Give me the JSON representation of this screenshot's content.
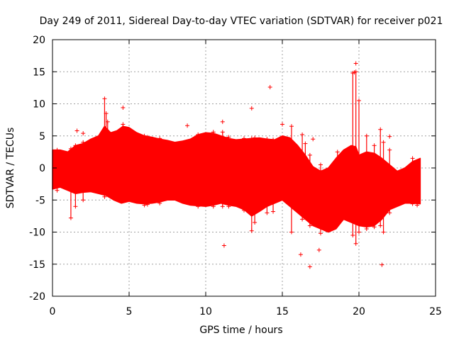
{
  "chart_data": {
    "type": "scatter",
    "title": "Day 249 of 2011, Sidereal Day-to-day VTEC variation (SDTVAR) for receiver p021",
    "xlabel": "GPS time / hours",
    "ylabel": "SDTVAR / TECUs",
    "xlim": [
      0,
      25
    ],
    "ylim": [
      -20,
      20
    ],
    "xticks": [
      0,
      5,
      10,
      15,
      20,
      25
    ],
    "xtick_labels": [
      "0",
      "5",
      "10",
      "15",
      "20",
      "25"
    ],
    "yticks": [
      -20,
      -15,
      -10,
      -5,
      0,
      5,
      10,
      15,
      20
    ],
    "ytick_labels": [
      "-20",
      "-15",
      "-10",
      "-5",
      "0",
      "5",
      "10",
      "15",
      "20"
    ],
    "grid": true,
    "marker": "+",
    "color": "#ff0000",
    "band_upper": [
      [
        0,
        2.8
      ],
      [
        0.5,
        2.8
      ],
      [
        1,
        2.5
      ],
      [
        1.5,
        3.5
      ],
      [
        2,
        3.8
      ],
      [
        2.5,
        4.5
      ],
      [
        3,
        5.0
      ],
      [
        3.4,
        6.5
      ],
      [
        3.8,
        5.5
      ],
      [
        4.2,
        5.8
      ],
      [
        4.6,
        6.5
      ],
      [
        5,
        6.3
      ],
      [
        5.5,
        5.5
      ],
      [
        6,
        5.0
      ],
      [
        6.5,
        4.8
      ],
      [
        7,
        4.5
      ],
      [
        7.5,
        4.3
      ],
      [
        8,
        4.0
      ],
      [
        8.5,
        4.2
      ],
      [
        9,
        4.5
      ],
      [
        9.5,
        5.2
      ],
      [
        10,
        5.5
      ],
      [
        10.5,
        5.4
      ],
      [
        11,
        5.0
      ],
      [
        11.5,
        4.6
      ],
      [
        12,
        4.4
      ],
      [
        12.5,
        4.5
      ],
      [
        13,
        4.6
      ],
      [
        13.5,
        4.7
      ],
      [
        14,
        4.5
      ],
      [
        14.5,
        4.4
      ],
      [
        15,
        5.0
      ],
      [
        15.5,
        4.7
      ],
      [
        16,
        3.5
      ],
      [
        16.5,
        2.0
      ],
      [
        17,
        0.2
      ],
      [
        17.5,
        -0.5
      ],
      [
        18,
        0.0
      ],
      [
        18.5,
        1.5
      ],
      [
        19,
        2.8
      ],
      [
        19.5,
        3.5
      ],
      [
        19.8,
        3.3
      ],
      [
        20,
        2.0
      ],
      [
        20.5,
        2.5
      ],
      [
        21,
        2.3
      ],
      [
        21.5,
        1.5
      ],
      [
        22,
        0.5
      ],
      [
        22.5,
        -0.5
      ],
      [
        23,
        0.0
      ],
      [
        23.5,
        1.0
      ],
      [
        24,
        1.5
      ]
    ],
    "band_lower": [
      [
        0,
        -3.3
      ],
      [
        0.5,
        -3.0
      ],
      [
        1,
        -3.5
      ],
      [
        1.5,
        -4.0
      ],
      [
        2,
        -3.8
      ],
      [
        2.5,
        -3.7
      ],
      [
        3,
        -4.0
      ],
      [
        3.5,
        -4.3
      ],
      [
        4,
        -5.0
      ],
      [
        4.5,
        -5.5
      ],
      [
        5,
        -5.2
      ],
      [
        5.5,
        -5.5
      ],
      [
        6,
        -5.6
      ],
      [
        6.5,
        -5.5
      ],
      [
        7,
        -5.3
      ],
      [
        7.5,
        -5.0
      ],
      [
        8,
        -5.0
      ],
      [
        8.5,
        -5.5
      ],
      [
        9,
        -5.8
      ],
      [
        9.5,
        -5.9
      ],
      [
        10,
        -6.0
      ],
      [
        10.5,
        -5.8
      ],
      [
        11,
        -5.5
      ],
      [
        11.5,
        -5.8
      ],
      [
        12,
        -6.0
      ],
      [
        12.5,
        -6.5
      ],
      [
        13,
        -7.5
      ],
      [
        13.5,
        -6.8
      ],
      [
        14,
        -6.0
      ],
      [
        14.5,
        -5.5
      ],
      [
        15,
        -5.0
      ],
      [
        15.5,
        -6.0
      ],
      [
        16,
        -7.0
      ],
      [
        16.5,
        -8.0
      ],
      [
        17,
        -9.0
      ],
      [
        17.5,
        -9.5
      ],
      [
        18,
        -10.0
      ],
      [
        18.5,
        -9.5
      ],
      [
        19,
        -8.0
      ],
      [
        19.5,
        -8.5
      ],
      [
        20,
        -9.0
      ],
      [
        20.5,
        -9.2
      ],
      [
        21,
        -9.0
      ],
      [
        21.5,
        -8.0
      ],
      [
        22,
        -6.5
      ],
      [
        22.5,
        -6.0
      ],
      [
        23,
        -5.5
      ],
      [
        23.5,
        -5.5
      ],
      [
        24,
        -5.6
      ]
    ],
    "spikes": [
      [
        0.3,
        -3.5,
        2.8
      ],
      [
        1.2,
        -7.8,
        3.0
      ],
      [
        1.5,
        -6.0,
        3.5
      ],
      [
        2.0,
        -5.0,
        4.0
      ],
      [
        3.4,
        -4.5,
        10.8
      ],
      [
        3.5,
        -4.0,
        8.5
      ],
      [
        3.6,
        -4.0,
        7.2
      ],
      [
        4.6,
        -5.0,
        6.8
      ],
      [
        6.0,
        -5.8,
        5.0
      ],
      [
        6.2,
        -5.7,
        4.8
      ],
      [
        7.0,
        -5.5,
        4.6
      ],
      [
        9.5,
        -6.0,
        5.2
      ],
      [
        10.5,
        -6.0,
        5.6
      ],
      [
        11.1,
        -6.0,
        5.6
      ],
      [
        11.5,
        -6.0,
        4.8
      ],
      [
        12.5,
        -6.6,
        4.6
      ],
      [
        13.0,
        -9.8,
        4.6
      ],
      [
        13.2,
        -8.5,
        4.7
      ],
      [
        14.0,
        -7.0,
        4.5
      ],
      [
        14.4,
        -6.8,
        4.4
      ],
      [
        15.6,
        -10.0,
        6.5
      ],
      [
        16.3,
        -8.0,
        5.2
      ],
      [
        16.5,
        -7.5,
        3.8
      ],
      [
        16.8,
        -9.0,
        2.0
      ],
      [
        17.5,
        -10.2,
        0.5
      ],
      [
        18.6,
        -8.5,
        2.5
      ],
      [
        19.6,
        -10.5,
        14.8
      ],
      [
        19.8,
        -11.8,
        15.0
      ],
      [
        20.0,
        -10.0,
        10.5
      ],
      [
        20.5,
        -9.5,
        5.0
      ],
      [
        21.0,
        -9.2,
        3.5
      ],
      [
        21.4,
        -9.0,
        6.0
      ],
      [
        21.6,
        -10.0,
        4.0
      ],
      [
        22.0,
        -7.0,
        2.8
      ],
      [
        23.5,
        -5.6,
        1.5
      ],
      [
        23.8,
        -5.8,
        1.0
      ]
    ],
    "outliers": [
      [
        1.6,
        5.8
      ],
      [
        2.0,
        5.4
      ],
      [
        4.6,
        9.4
      ],
      [
        8.8,
        6.6
      ],
      [
        11.1,
        7.2
      ],
      [
        11.2,
        -12.1
      ],
      [
        13.0,
        9.3
      ],
      [
        14.2,
        12.6
      ],
      [
        16.2,
        -13.5
      ],
      [
        16.8,
        -15.4
      ],
      [
        17.0,
        4.5
      ],
      [
        17.4,
        -12.8
      ],
      [
        19.8,
        16.3
      ],
      [
        19.7,
        14.9
      ],
      [
        21.5,
        -15.1
      ],
      [
        22.0,
        4.9
      ],
      [
        15.0,
        6.8
      ]
    ]
  }
}
